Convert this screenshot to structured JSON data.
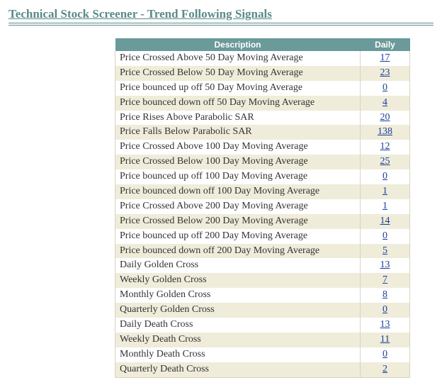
{
  "page": {
    "title": "Technical Stock Screener - Trend Following Signals"
  },
  "table": {
    "headers": {
      "description": "Description",
      "daily": "Daily"
    },
    "rows": [
      {
        "desc": "Price Crossed Above 50 Day Moving Average",
        "daily": "17"
      },
      {
        "desc": "Price Crossed Below 50 Day Moving Average",
        "daily": "23"
      },
      {
        "desc": "Price bounced up off 50 Day Moving Average",
        "daily": "0"
      },
      {
        "desc": "Price bounced down off 50 Day Moving Average",
        "daily": "4"
      },
      {
        "desc": "Price Rises Above Parabolic SAR",
        "daily": "20"
      },
      {
        "desc": "Price Falls Below Parabolic SAR",
        "daily": "138"
      },
      {
        "desc": "Price Crossed Above 100 Day Moving Average",
        "daily": "12"
      },
      {
        "desc": "Price Crossed Below 100 Day Moving Average",
        "daily": "25"
      },
      {
        "desc": "Price bounced up off 100 Day Moving Average",
        "daily": "0"
      },
      {
        "desc": "Price bounced down off 100 Day Moving Average",
        "daily": "1"
      },
      {
        "desc": "Price Crossed Above 200 Day Moving Average",
        "daily": "1"
      },
      {
        "desc": "Price Crossed Below 200 Day Moving Average",
        "daily": "14"
      },
      {
        "desc": "Price bounced up off 200 Day Moving Average",
        "daily": "0"
      },
      {
        "desc": "Price bounced down off 200 Day Moving Average",
        "daily": "5"
      },
      {
        "desc": "Daily Golden Cross",
        "daily": "13"
      },
      {
        "desc": "Weekly Golden Cross",
        "daily": "7"
      },
      {
        "desc": "Monthly Golden Cross",
        "daily": "8"
      },
      {
        "desc": "Quarterly Golden Cross",
        "daily": "0"
      },
      {
        "desc": "Daily Death Cross",
        "daily": "13"
      },
      {
        "desc": "Weekly Death Cross",
        "daily": "11"
      },
      {
        "desc": "Monthly Death Cross",
        "daily": "0"
      },
      {
        "desc": "Quarterly Death Cross",
        "daily": "2"
      }
    ]
  },
  "colors": {
    "header_bg": "#6b9a9a",
    "header_text": "#ffffff",
    "row_even_bg": "#efecda",
    "row_odd_bg": "#ffffff",
    "link": "#1a3f9c",
    "title": "#5a8a8a",
    "border": "#d8d4c0"
  }
}
